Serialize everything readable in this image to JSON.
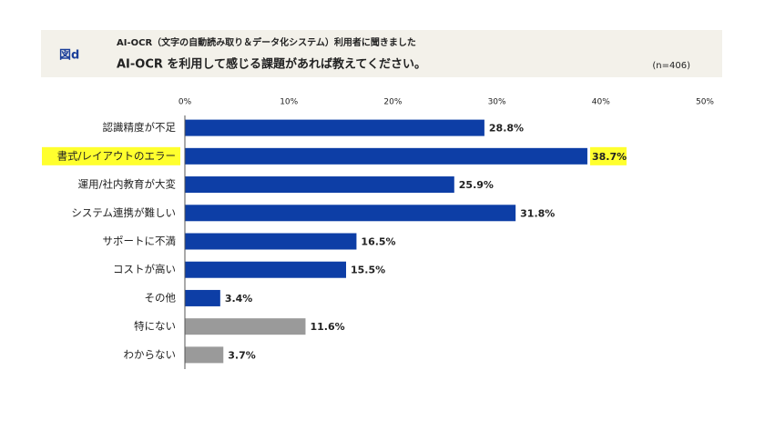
{
  "chart_data": {
    "type": "bar",
    "orientation": "horizontal",
    "figure_label": "図d",
    "subtitle": "AI-OCR（文字の自動読み取り＆データ化システム）利用者に聞きました",
    "title": "AI-OCR を利用して感じる課題があれば教えてください。",
    "note": "(n=406)",
    "categories": [
      "認識精度が不足",
      "書式/レイアウトのエラー",
      "運用/社内教育が大変",
      "システム連携が難しい",
      "サポートに不満",
      "コストが高い",
      "その他",
      "特にない",
      "わからない"
    ],
    "values": [
      28.8,
      38.7,
      25.9,
      31.8,
      16.5,
      15.5,
      3.4,
      11.6,
      3.7
    ],
    "value_labels": [
      "28.8%",
      "38.7%",
      "25.9%",
      "31.8%",
      "16.5%",
      "15.5%",
      "3.4%",
      "11.6%",
      "3.7%"
    ],
    "colors": [
      "#0d3ea6",
      "#0d3ea6",
      "#0d3ea6",
      "#0d3ea6",
      "#0d3ea6",
      "#0d3ea6",
      "#0d3ea6",
      "#9a9a9a",
      "#9a9a9a"
    ],
    "highlighted": [
      false,
      true,
      false,
      false,
      false,
      false,
      false,
      false,
      false
    ],
    "highlight_color": "#ffff2e",
    "xlim": [
      0,
      50
    ],
    "xticks": [
      {
        "value": 0,
        "label": "0%"
      },
      {
        "value": 10,
        "label": "10%"
      },
      {
        "value": 20,
        "label": "20%"
      },
      {
        "value": 30,
        "label": "30%"
      },
      {
        "value": 40,
        "label": "40%"
      },
      {
        "value": 50,
        "label": "50%"
      }
    ]
  }
}
